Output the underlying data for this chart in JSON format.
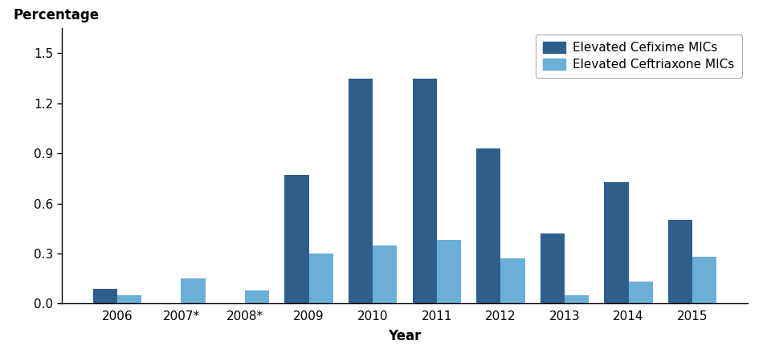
{
  "years": [
    "2006",
    "2007*",
    "2008*",
    "2009",
    "2010",
    "2011",
    "2012",
    "2013",
    "2014",
    "2015"
  ],
  "cefixime_values": [
    0.09,
    0.0,
    0.0,
    0.77,
    1.35,
    1.35,
    0.93,
    0.42,
    0.73,
    0.5
  ],
  "ceftriaxone_values": [
    0.05,
    0.15,
    0.08,
    0.3,
    0.35,
    0.38,
    0.27,
    0.05,
    0.13,
    0.28
  ],
  "cefixime_color": "#2E5F8A",
  "ceftriaxone_color": "#6BAED6",
  "ylabel": "Percentage",
  "xlabel": "Year",
  "ylim": [
    0,
    1.65
  ],
  "yticks": [
    0.0,
    0.3,
    0.6,
    0.9,
    1.2,
    1.5
  ],
  "legend_labels": [
    "Elevated Cefixime MICs",
    "Elevated Ceftriaxone MICs"
  ],
  "bar_width": 0.38,
  "background_color": "#ffffff"
}
